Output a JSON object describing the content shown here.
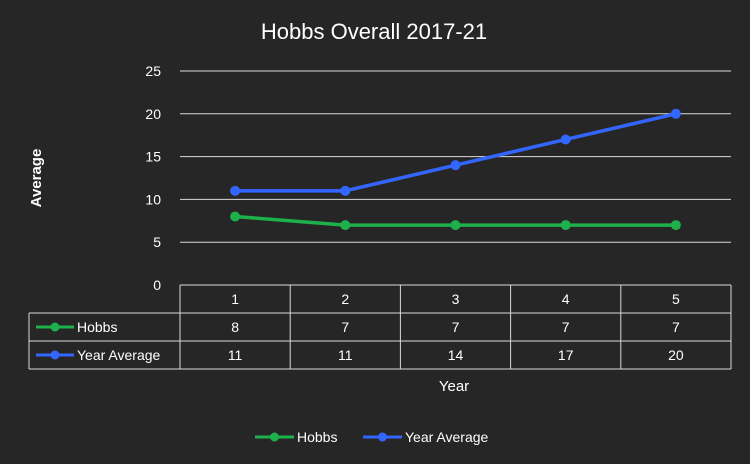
{
  "chart_data": {
    "type": "line",
    "title": "Hobbs Overall 2017-21",
    "xlabel": "Year",
    "ylabel": "Average",
    "categories": [
      "1",
      "2",
      "3",
      "4",
      "5"
    ],
    "series": [
      {
        "name": "Hobbs",
        "color": "#1eb04b",
        "values": [
          8,
          7,
          7,
          7,
          7
        ]
      },
      {
        "name": "Year Average",
        "color": "#3366ff",
        "values": [
          11,
          11,
          14,
          17,
          20
        ]
      }
    ],
    "ylim": [
      0,
      25
    ],
    "yticks": [
      0,
      5,
      10,
      15,
      20,
      25
    ],
    "grid": true,
    "data_table": true,
    "legend_position": "bottom"
  },
  "colors": {
    "background": "#262626",
    "gridline": "#d9d9d9",
    "text": "#ffffff"
  }
}
